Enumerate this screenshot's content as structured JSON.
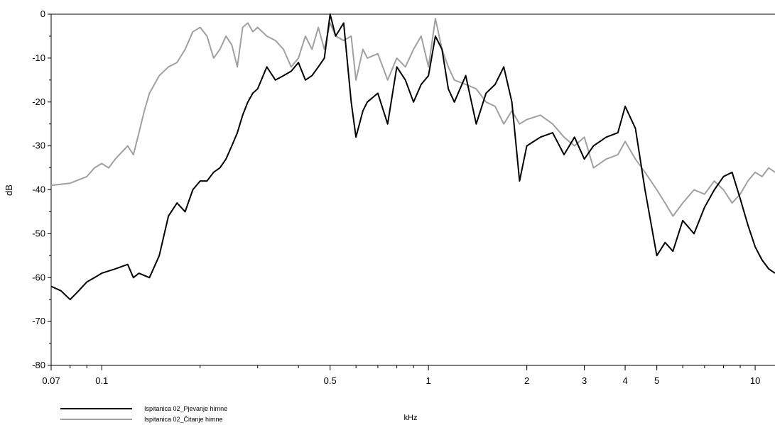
{
  "chart_data": {
    "type": "line",
    "title": "",
    "xlabel": "kHz",
    "ylabel": "dB",
    "x_scale": "log",
    "xlim": [
      0.07,
      11.5
    ],
    "ylim": [
      -80,
      0
    ],
    "grid": false,
    "legend_position": "bottom-left",
    "x_ticks": [
      {
        "value": 0.07,
        "label": "0.07"
      },
      {
        "value": 0.1,
        "label": "0.1"
      },
      {
        "value": 0.5,
        "label": "0.5"
      },
      {
        "value": 1,
        "label": "1"
      },
      {
        "value": 2,
        "label": "2"
      },
      {
        "value": 3,
        "label": "3"
      },
      {
        "value": 4,
        "label": "4"
      },
      {
        "value": 5,
        "label": "5"
      },
      {
        "value": 10,
        "label": "10"
      }
    ],
    "y_ticks": [
      {
        "value": 0,
        "label": "0"
      },
      {
        "value": -10,
        "label": "-10"
      },
      {
        "value": -20,
        "label": "-20"
      },
      {
        "value": -30,
        "label": "-30"
      },
      {
        "value": -40,
        "label": "-40"
      },
      {
        "value": -50,
        "label": "-50"
      },
      {
        "value": -60,
        "label": "-60"
      },
      {
        "value": -70,
        "label": "-70"
      },
      {
        "value": -80,
        "label": "-80"
      }
    ],
    "series": [
      {
        "name": "Ispitanica 02_Pjevanje himne",
        "color": "#000000",
        "x": [
          0.07,
          0.075,
          0.08,
          0.085,
          0.09,
          0.095,
          0.1,
          0.11,
          0.12,
          0.125,
          0.13,
          0.14,
          0.15,
          0.16,
          0.17,
          0.18,
          0.19,
          0.2,
          0.21,
          0.22,
          0.23,
          0.24,
          0.25,
          0.26,
          0.27,
          0.28,
          0.29,
          0.3,
          0.32,
          0.34,
          0.36,
          0.38,
          0.4,
          0.42,
          0.44,
          0.46,
          0.48,
          0.5,
          0.52,
          0.55,
          0.58,
          0.6,
          0.63,
          0.65,
          0.7,
          0.75,
          0.8,
          0.85,
          0.9,
          0.95,
          1.0,
          1.05,
          1.1,
          1.15,
          1.2,
          1.3,
          1.4,
          1.5,
          1.6,
          1.7,
          1.8,
          1.9,
          2.0,
          2.2,
          2.4,
          2.6,
          2.8,
          3.0,
          3.2,
          3.5,
          3.8,
          4.0,
          4.3,
          4.6,
          5.0,
          5.3,
          5.6,
          6.0,
          6.5,
          7.0,
          7.5,
          8.0,
          8.5,
          9.0,
          9.5,
          10.0,
          10.5,
          11.0,
          11.5
        ],
        "y": [
          -62,
          -63,
          -65,
          -63,
          -61,
          -60,
          -59,
          -58,
          -57,
          -60,
          -59,
          -60,
          -55,
          -46,
          -43,
          -45,
          -40,
          -38,
          -38,
          -36,
          -35,
          -33,
          -30,
          -27,
          -23,
          -20,
          -18,
          -17,
          -12,
          -15,
          -14,
          -13,
          -11,
          -15,
          -14,
          -12,
          -10,
          0,
          -5,
          -2,
          -20,
          -28,
          -22,
          -20,
          -18,
          -25,
          -12,
          -15,
          -20,
          -16,
          -14,
          -5,
          -8,
          -17,
          -20,
          -14,
          -25,
          -18,
          -16,
          -12,
          -20,
          -38,
          -30,
          -28,
          -27,
          -32,
          -28,
          -33,
          -30,
          -28,
          -27,
          -21,
          -26,
          -40,
          -55,
          -52,
          -54,
          -47,
          -50,
          -44,
          -40,
          -37,
          -36,
          -42,
          -48,
          -53,
          -56,
          -58,
          -59
        ]
      },
      {
        "name": "Ispitanica 02_Čitanje himne",
        "color": "#a0a0a0",
        "x": [
          0.07,
          0.08,
          0.09,
          0.095,
          0.1,
          0.105,
          0.11,
          0.12,
          0.125,
          0.13,
          0.135,
          0.14,
          0.15,
          0.16,
          0.17,
          0.18,
          0.19,
          0.2,
          0.21,
          0.22,
          0.23,
          0.24,
          0.25,
          0.26,
          0.27,
          0.28,
          0.29,
          0.3,
          0.32,
          0.34,
          0.36,
          0.38,
          0.4,
          0.42,
          0.44,
          0.46,
          0.48,
          0.5,
          0.52,
          0.55,
          0.58,
          0.6,
          0.63,
          0.65,
          0.7,
          0.75,
          0.8,
          0.85,
          0.9,
          0.95,
          1.0,
          1.05,
          1.1,
          1.15,
          1.2,
          1.3,
          1.4,
          1.5,
          1.6,
          1.7,
          1.8,
          1.9,
          2.0,
          2.2,
          2.4,
          2.6,
          2.8,
          3.0,
          3.2,
          3.5,
          3.8,
          4.0,
          4.3,
          4.6,
          5.0,
          5.3,
          5.6,
          6.0,
          6.5,
          7.0,
          7.5,
          8.0,
          8.5,
          9.0,
          9.5,
          10.0,
          10.5,
          11.0,
          11.5
        ],
        "y": [
          -39,
          -38.5,
          -37,
          -35,
          -34,
          -35,
          -33,
          -30,
          -32,
          -27,
          -22,
          -18,
          -14,
          -12,
          -11,
          -8,
          -4,
          -3,
          -5,
          -10,
          -8,
          -5,
          -7,
          -12,
          -3,
          -2,
          -4,
          -3,
          -5,
          -6,
          -8,
          -12,
          -10,
          -5,
          -8,
          -3,
          -8,
          -2,
          -5,
          -6,
          -5,
          -15,
          -8,
          -10,
          -9,
          -15,
          -10,
          -12,
          -8,
          -5,
          -12,
          -1,
          -8,
          -12,
          -15,
          -16,
          -17,
          -20,
          -21,
          -25,
          -22,
          -25,
          -24,
          -23,
          -25,
          -28,
          -30,
          -28,
          -35,
          -33,
          -32,
          -29,
          -33,
          -36,
          -40,
          -43,
          -46,
          -43,
          -40,
          -41,
          -38,
          -40,
          -43,
          -41,
          -38,
          -36,
          -37,
          -35,
          -36
        ]
      }
    ]
  }
}
